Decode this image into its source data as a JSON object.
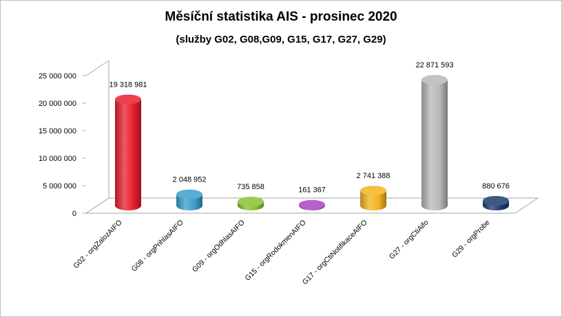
{
  "chart_data": {
    "type": "bar",
    "title": "Měsíční statistika AIS -  prosinec 2020",
    "subtitle": "(služby  G02,  G08,G09, G15, G17, G27, G29)",
    "categories": [
      "G02 - orgZalozAIFO",
      "G08 - orgPrihlasAIFO",
      "G09 - orgOdhlasAIFO",
      "G15 - orgRodokmenAIFO",
      "G17 - orgCtiNotifikaceAIFO",
      "G27 - orgCtiAifo",
      "G29 - orgProbe"
    ],
    "values": [
      19318981,
      2048952,
      735858,
      161367,
      2741388,
      22871593,
      880676
    ],
    "data_labels": [
      "19 318 981",
      "2 048 952",
      "735 858",
      "161 367",
      "2 741 388",
      "22 871 593",
      "880 676"
    ],
    "yticks": [
      "0",
      "5 000 000",
      "10 000 000",
      "15 000 000",
      "20 000 000",
      "25 000 000"
    ],
    "ylim": [
      0,
      25000000
    ],
    "grid": false,
    "legend": "none",
    "colors": [
      "#e8202f",
      "#3a9ec8",
      "#86c230",
      "#a646c4",
      "#f2b51e",
      "#b8b8b8",
      "#1e3a6e"
    ],
    "xlabel": "",
    "ylabel": ""
  }
}
